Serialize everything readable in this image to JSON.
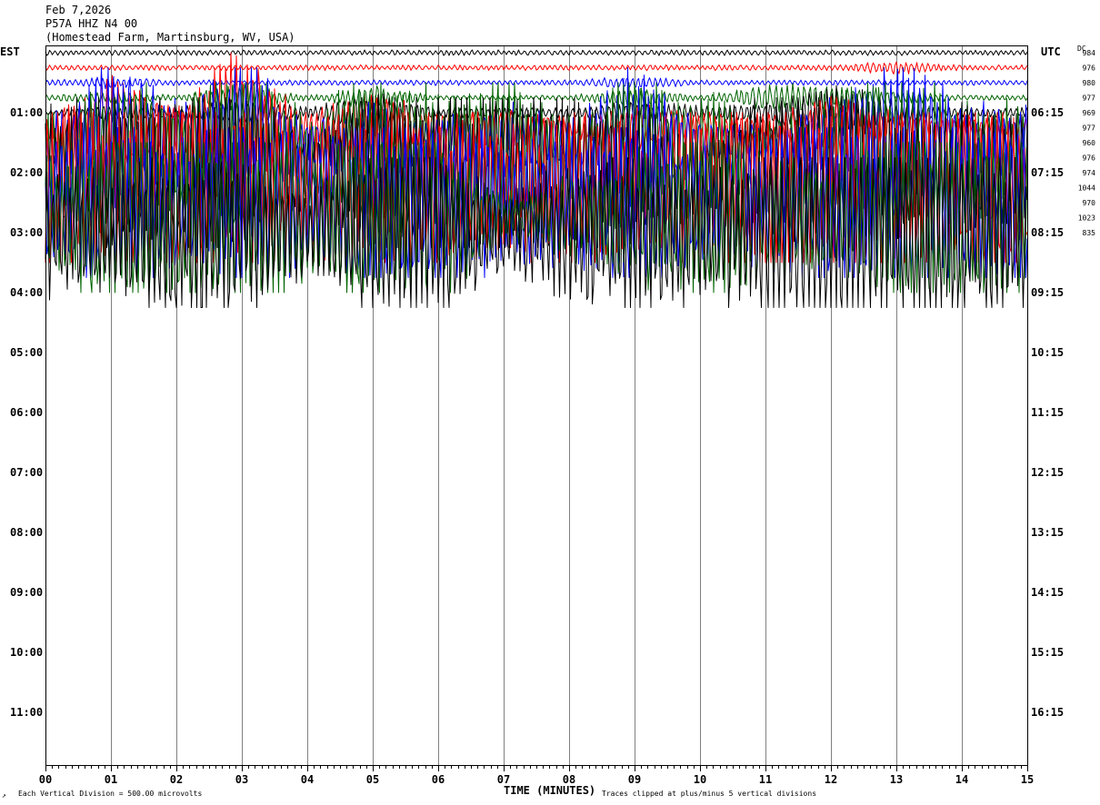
{
  "header": {
    "date": "Feb 7,2026",
    "station": "P57A HHZ N4 00",
    "location": "(Homestead Farm, Martinsburg, WV, USA)"
  },
  "left_zone_label": "EST",
  "right_zone_label": "UTC",
  "dc_label": "DC",
  "footer": {
    "scale_note": "Each Vertical Division =  500.00 microvolts",
    "xlabel": "TIME (MINUTES)",
    "clip_note": "Traces clipped at plus/minus 5 vertical divisions",
    "mark": "↗"
  },
  "colors": {
    "grid": "#808080",
    "axis": "#000000",
    "trace_cycle": [
      "#000000",
      "#ff0000",
      "#0000ff",
      "#006400"
    ]
  },
  "chart_data": {
    "type": "line",
    "title": "P57A HHZ N4 00",
    "xlabel": "TIME (MINUTES)",
    "xlim": [
      0,
      15
    ],
    "x_ticks": [
      "00",
      "01",
      "02",
      "03",
      "04",
      "05",
      "06",
      "07",
      "08",
      "09",
      "10",
      "11",
      "12",
      "13",
      "14",
      "15"
    ],
    "left_hour_labels": [
      "01:00",
      "02:00",
      "03:00",
      "04:00",
      "05:00",
      "06:00",
      "07:00",
      "08:00",
      "09:00",
      "10:00",
      "11:00"
    ],
    "right_hour_labels": [
      "06:15",
      "07:15",
      "08:15",
      "09:15",
      "10:15",
      "11:15",
      "12:15",
      "13:15",
      "14:15",
      "15:15",
      "16:15"
    ],
    "trace_interval_minutes": 15,
    "dc_offsets": [
      "984",
      "976",
      "980",
      "977",
      "969",
      "977",
      "960",
      "976",
      "974",
      "1044",
      "970",
      "1023",
      "835"
    ],
    "series": [
      {
        "color": "#000000",
        "activity": [
          1,
          1,
          1,
          1,
          1,
          1,
          1,
          1,
          1,
          1,
          1,
          1,
          1,
          1,
          1
        ]
      },
      {
        "color": "#ff0000",
        "activity": [
          1,
          1,
          1,
          1,
          1,
          1,
          1,
          1,
          1,
          1,
          1,
          1,
          1,
          1.6,
          1
        ]
      },
      {
        "color": "#0000ff",
        "activity": [
          1,
          1.5,
          1,
          1,
          1,
          1,
          1,
          1,
          1,
          1.6,
          1,
          1,
          1,
          1,
          1
        ]
      },
      {
        "color": "#006400",
        "activity": [
          1,
          1.6,
          1,
          2.5,
          1,
          2.2,
          1,
          1,
          1,
          2,
          1,
          2.2,
          2.4,
          1.6,
          1
        ]
      },
      {
        "color": "#000000",
        "activity": [
          1,
          1.8,
          1.4,
          2.5,
          1.4,
          3,
          1.4,
          1.4,
          1.4,
          2.2,
          1.6,
          2,
          3.5,
          2.2,
          1.4
        ]
      },
      {
        "color": "#ff0000",
        "activity": [
          2.2,
          5,
          3,
          6,
          2.5,
          4,
          2.5,
          3,
          2,
          3,
          2.5,
          2.2,
          3.5,
          2.5,
          2
        ]
      },
      {
        "color": "#0000ff",
        "activity": [
          3,
          6,
          4,
          6,
          3,
          4,
          3,
          4,
          3,
          6,
          3,
          2.5,
          4,
          6,
          4
        ]
      },
      {
        "color": "#006400",
        "activity": [
          4,
          6,
          5,
          6,
          4,
          6,
          5,
          6,
          4,
          6,
          5,
          4,
          5,
          6,
          5
        ]
      },
      {
        "color": "#000000",
        "activity": [
          5,
          6,
          6,
          6,
          4,
          6,
          6,
          6,
          6,
          5,
          4,
          6,
          6,
          5,
          5
        ]
      },
      {
        "color": "#ff0000",
        "activity": [
          6,
          6,
          6,
          6,
          5,
          6,
          6,
          5,
          6,
          5,
          6,
          6,
          6,
          6,
          6
        ]
      },
      {
        "color": "#0000ff",
        "activity": [
          5,
          6,
          5,
          6,
          5,
          6,
          6,
          5,
          5,
          6,
          5,
          5,
          6,
          6,
          6
        ]
      },
      {
        "color": "#006400",
        "activity": [
          5,
          6,
          6,
          6,
          5,
          6,
          6,
          3,
          4,
          5,
          6,
          5,
          5,
          6,
          6
        ]
      },
      {
        "color": "#000000",
        "activity": [
          5,
          5,
          6,
          6,
          4,
          6,
          6,
          4,
          5,
          6,
          5,
          6,
          6,
          6,
          6
        ]
      }
    ]
  }
}
